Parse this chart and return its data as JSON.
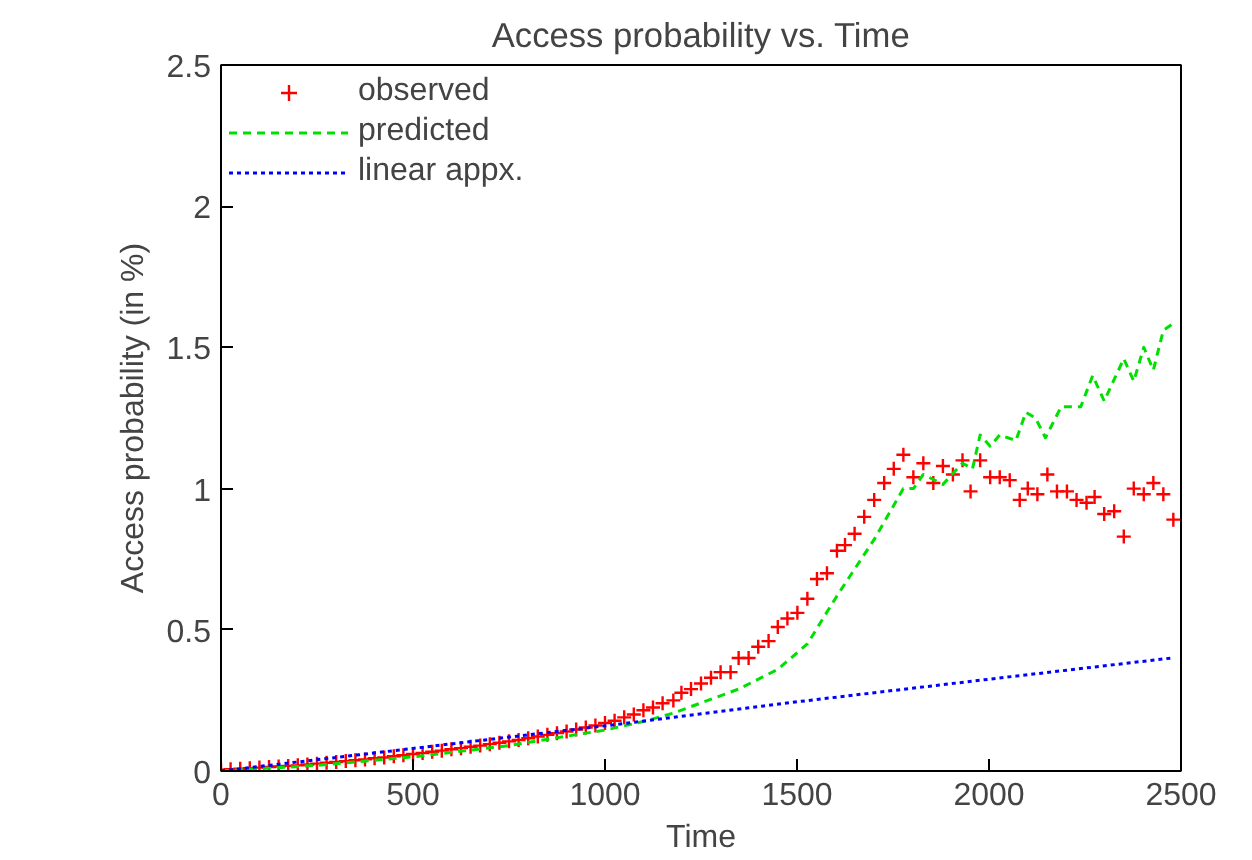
{
  "chart_data": {
    "type": "line",
    "title": "Access probability vs. Time",
    "xlabel": "Time",
    "ylabel": "Access probability (in %)",
    "xlim": [
      0,
      2500
    ],
    "ylim": [
      0,
      2.5
    ],
    "xticks": [
      0,
      500,
      1000,
      1500,
      2000,
      2500
    ],
    "yticks": [
      0,
      0.5,
      1,
      1.5,
      2,
      2.5
    ],
    "grid": false,
    "legend": "top left",
    "series": [
      {
        "name": "observed",
        "type": "scatter",
        "marker": "cross",
        "color": "#ff0000",
        "x": [
          0,
          25,
          50,
          75,
          100,
          125,
          150,
          175,
          200,
          225,
          250,
          275,
          300,
          325,
          350,
          375,
          400,
          425,
          450,
          475,
          500,
          525,
          550,
          575,
          600,
          625,
          650,
          675,
          700,
          725,
          750,
          775,
          800,
          825,
          850,
          875,
          900,
          925,
          950,
          975,
          1000,
          1025,
          1050,
          1075,
          1100,
          1125,
          1150,
          1178,
          1199,
          1224,
          1250,
          1276,
          1301,
          1327,
          1348,
          1374,
          1399,
          1426,
          1450,
          1475,
          1501,
          1527,
          1552,
          1578,
          1604,
          1625,
          1650,
          1675,
          1701,
          1727,
          1752,
          1777,
          1803,
          1829,
          1855,
          1880,
          1906,
          1931,
          1952,
          1977,
          2003,
          2028,
          2054,
          2080,
          2101,
          2126,
          2152,
          2177,
          2203,
          2228,
          2254,
          2275,
          2300,
          2326,
          2351,
          2377,
          2403,
          2428,
          2454,
          2480
        ],
        "values": [
          0.005,
          0.006,
          0.008,
          0.01,
          0.012,
          0.014,
          0.016,
          0.018,
          0.02,
          0.023,
          0.026,
          0.029,
          0.032,
          0.035,
          0.038,
          0.041,
          0.045,
          0.048,
          0.052,
          0.056,
          0.06,
          0.064,
          0.068,
          0.072,
          0.077,
          0.081,
          0.086,
          0.09,
          0.095,
          0.1,
          0.105,
          0.11,
          0.116,
          0.122,
          0.128,
          0.134,
          0.14,
          0.147,
          0.154,
          0.161,
          0.17,
          0.178,
          0.19,
          0.2,
          0.215,
          0.225,
          0.24,
          0.25,
          0.277,
          0.29,
          0.31,
          0.33,
          0.35,
          0.35,
          0.4,
          0.4,
          0.44,
          0.46,
          0.51,
          0.54,
          0.56,
          0.61,
          0.68,
          0.7,
          0.78,
          0.8,
          0.84,
          0.9,
          0.96,
          1.02,
          1.07,
          1.12,
          1.04,
          1.09,
          1.02,
          1.08,
          1.05,
          1.1,
          0.99,
          1.1,
          1.04,
          1.04,
          1.03,
          0.96,
          1.0,
          0.98,
          1.05,
          0.99,
          0.99,
          0.96,
          0.95,
          0.97,
          0.91,
          0.92,
          0.83,
          1.0,
          0.98,
          1.02,
          0.98,
          0.89
        ]
      },
      {
        "name": "predicted",
        "line_style": "dashed",
        "color": "#00e000",
        "x": [
          0,
          250,
          500,
          750,
          1000,
          1100,
          1178,
          1348,
          1450,
          1527,
          1604,
          1701,
          1777,
          1803,
          1829,
          1880,
          1931,
          1957,
          1977,
          2003,
          2028,
          2070,
          2096,
          2121,
          2147,
          2188,
          2239,
          2270,
          2300,
          2351,
          2377,
          2403,
          2428,
          2454,
          2475
        ],
        "values": [
          0.0,
          0.02,
          0.05,
          0.09,
          0.145,
          0.175,
          0.205,
          0.29,
          0.36,
          0.45,
          0.62,
          0.82,
          1.0,
          1.0,
          1.05,
          1.015,
          1.09,
          1.07,
          1.19,
          1.15,
          1.19,
          1.17,
          1.27,
          1.25,
          1.18,
          1.29,
          1.29,
          1.4,
          1.31,
          1.46,
          1.38,
          1.5,
          1.42,
          1.56,
          1.58
        ]
      },
      {
        "name": "linear appx.",
        "line_style": "dotted",
        "color": "#0000ff",
        "x": [
          0,
          500,
          1000,
          1500,
          2000,
          2475
        ],
        "values": [
          0.0,
          0.08,
          0.16,
          0.245,
          0.325,
          0.4
        ]
      }
    ]
  }
}
